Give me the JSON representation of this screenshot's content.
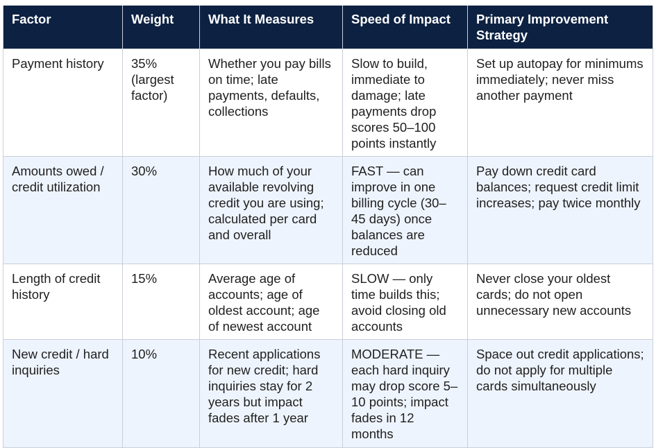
{
  "table": {
    "headers": [
      "Factor",
      "Weight",
      "What It Measures",
      "Speed of Impact",
      "Primary Improvement Strategy"
    ],
    "rows": [
      {
        "factor": "Payment history",
        "weight": "35% (largest factor)",
        "measures": "Whether you pay bills on time; late payments, defaults, collections",
        "speed": "Slow to build, immediate to damage; late payments drop scores 50–100 points instantly",
        "strategy": "Set up autopay for minimums immediately; never miss another payment"
      },
      {
        "factor": "Amounts owed / credit utilization",
        "weight": "30%",
        "measures": "How much of your available revolving credit you are using; calculated per card and overall",
        "speed": "FAST — can improve in one billing cycle (30–45 days) once balances are reduced",
        "strategy": "Pay down credit card balances; request credit limit increases; pay twice monthly"
      },
      {
        "factor": "Length of credit history",
        "weight": "15%",
        "measures": "Average age of accounts; age of oldest account; age of newest account",
        "speed": "SLOW — only time builds this; avoid closing old accounts",
        "strategy": "Never close your oldest cards; do not open unnecessary new accounts"
      },
      {
        "factor": "New credit / hard inquiries",
        "weight": "10%",
        "measures": "Recent applications for new credit; hard inquiries stay for 2 years but impact fades after 1 year",
        "speed": "MODERATE — each hard inquiry may drop score 5–10 points; impact fades in 12 months",
        "strategy": "Space out credit applications; do not apply for multiple cards simultaneously"
      }
    ]
  },
  "colors": {
    "header_bg": "#0d2142",
    "header_text": "#ffffff",
    "row_alt_bg": "#eef4fd",
    "border": "#c9cfd8",
    "body_text": "#1f1f1f"
  }
}
